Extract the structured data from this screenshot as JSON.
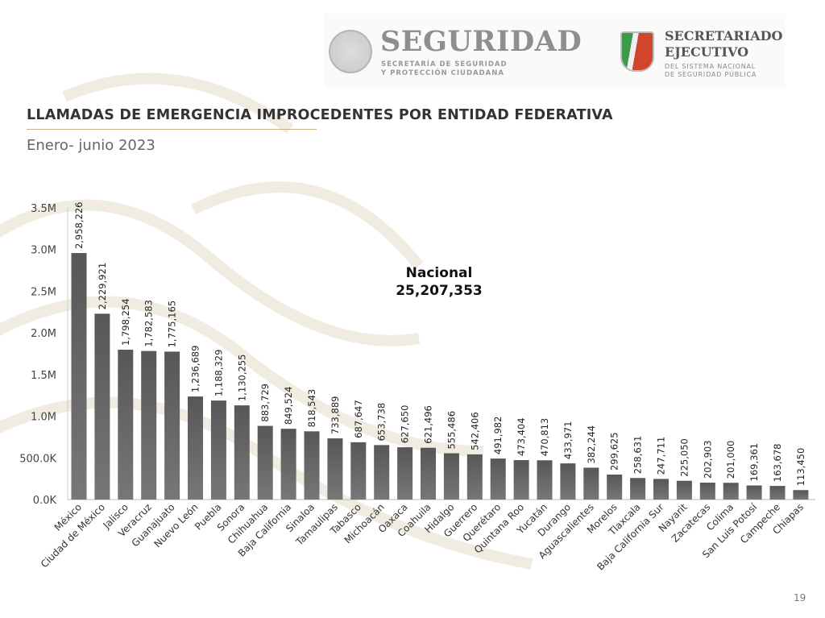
{
  "header": {
    "logo_seguridad": "SEGURIDAD",
    "logo_seguridad_sub": [
      "SECRETARÍA DE SEGURIDAD",
      "Y PROTECCIÓN CIUDADANA"
    ],
    "logo_secretariado": [
      "SECRETARIADO",
      "EJECUTIVO"
    ],
    "logo_secretariado_sub": [
      "DEL SISTEMA NACIONAL",
      "DE SEGURIDAD PÚBLICA"
    ]
  },
  "slide": {
    "title": "LLAMADAS DE EMERGENCIA IMPROCEDENTES POR ENTIDAD FEDERATIVA",
    "subtitle": "Enero- junio 2023",
    "nacional_label": "Nacional",
    "nacional_value": "25,207,353",
    "page_number": "19"
  },
  "chart_data": {
    "type": "bar",
    "title": "",
    "xlabel": "",
    "ylabel": "",
    "ylim": [
      0,
      3500000
    ],
    "yticks": [
      0,
      500000,
      1000000,
      1500000,
      2000000,
      2500000,
      3000000,
      3500000
    ],
    "ytick_labels": [
      "0.0K",
      "500.0K",
      "1.0M",
      "1.5M",
      "2.0M",
      "2.5M",
      "3.0M",
      "3.5M"
    ],
    "grid": false,
    "bar_color": "#5f5f5f",
    "categories": [
      "México",
      "Ciudad de México",
      "Jalisco",
      "Veracruz",
      "Guanajuato",
      "Nuevo León",
      "Puebla",
      "Sonora",
      "Chihuahua",
      "Baja California",
      "Sinaloa",
      "Tamaulipas",
      "Tabasco",
      "Michoacán",
      "Oaxaca",
      "Coahuila",
      "Hidalgo",
      "Guerrero",
      "Querétaro",
      "Quintana Roo",
      "Yucatán",
      "Durango",
      "Aguascalientes",
      "Morelos",
      "Tlaxcala",
      "Baja California Sur",
      "Nayarit",
      "Zacatecas",
      "Colima",
      "San Luis Potosí",
      "Campeche",
      "Chiapas"
    ],
    "values": [
      2958226,
      2229921,
      1798254,
      1782583,
      1775165,
      1236689,
      1188329,
      1130255,
      883729,
      849524,
      818543,
      733889,
      687647,
      653738,
      627650,
      621496,
      555486,
      542406,
      491982,
      473404,
      470813,
      433971,
      382244,
      299625,
      258631,
      247711,
      225050,
      202903,
      201000,
      169361,
      163678,
      113450
    ],
    "data_labels": [
      "2,958,226",
      "2,229,921",
      "1,798,254",
      "1,782,583",
      "1,775,165",
      "1,236,689",
      "1,188,329",
      "1,130,255",
      "883,729",
      "849,524",
      "818,543",
      "733,889",
      "687,647",
      "653,738",
      "627,650",
      "621,496",
      "555,486",
      "542,406",
      "491,982",
      "473,404",
      "470,813",
      "433,971",
      "382,244",
      "299,625",
      "258,631",
      "247,711",
      "225,050",
      "202,903",
      "201,000",
      "169,361",
      "163,678",
      "113,450"
    ]
  }
}
